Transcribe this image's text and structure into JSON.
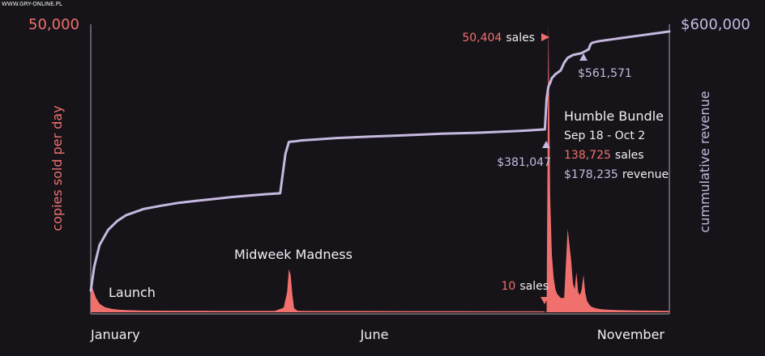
{
  "watermark": "WWW.GRY-ONLINE.PL",
  "colors": {
    "sales": "#f0706e",
    "revenue": "#c7b8e0",
    "text": "#f2eef4",
    "axis": "#7a7580",
    "background": "#161419"
  },
  "chart_data": {
    "type": "area",
    "left_axis": {
      "label": "copies sold per day",
      "max_label": "50,000",
      "ylim": [
        0,
        50000
      ]
    },
    "right_axis": {
      "label": "cummulative revenue",
      "max_label": "$600,000",
      "ylim": [
        0,
        600000
      ]
    },
    "x_ticks": [
      "January",
      "June",
      "November"
    ],
    "x_range_days": [
      0,
      330
    ],
    "series": [
      {
        "axis": "left",
        "type": "area",
        "x": [
          0,
          1,
          3,
          5,
          8,
          12,
          16,
          20,
          30,
          50,
          70,
          90,
          105,
          110,
          112,
          113,
          114,
          115,
          116,
          118,
          120,
          130,
          150,
          170,
          190,
          210,
          230,
          250,
          258,
          260,
          261,
          262,
          263,
          264,
          265,
          266,
          268,
          270,
          272,
          274,
          275,
          276,
          277,
          278,
          279,
          280,
          281,
          282,
          283,
          284,
          285,
          286,
          287,
          288,
          290,
          292,
          295,
          300,
          310,
          320,
          330
        ],
        "values": [
          5400,
          4200,
          2500,
          1500,
          900,
          600,
          450,
          380,
          300,
          260,
          250,
          240,
          240,
          800,
          3500,
          7500,
          6500,
          3000,
          700,
          260,
          240,
          230,
          220,
          210,
          200,
          190,
          180,
          170,
          170,
          10,
          50404,
          20000,
          10000,
          6000,
          4000,
          3200,
          2500,
          2500,
          14500,
          9000,
          5000,
          4000,
          7000,
          3500,
          3000,
          4000,
          6500,
          3500,
          2000,
          1500,
          1100,
          900,
          800,
          700,
          600,
          500,
          450,
          400,
          330,
          280,
          250
        ]
      },
      {
        "axis": "right",
        "type": "line",
        "x": [
          0,
          2,
          5,
          10,
          15,
          20,
          30,
          40,
          50,
          60,
          70,
          80,
          90,
          100,
          108,
          111,
          113,
          116,
          120,
          140,
          160,
          180,
          200,
          220,
          240,
          250,
          259,
          260,
          261,
          262,
          263,
          264,
          265,
          268,
          270,
          272,
          275,
          280,
          284,
          285,
          286,
          290,
          300,
          310,
          320,
          330
        ],
        "values": [
          45000,
          95000,
          140000,
          172000,
          190000,
          202000,
          215000,
          222000,
          228000,
          232000,
          236000,
          240000,
          243000,
          246000,
          248000,
          330000,
          355000,
          356000,
          358000,
          363000,
          366000,
          369000,
          372000,
          374000,
          377000,
          379000,
          381047,
          445000,
          470000,
          478000,
          488000,
          492000,
          496000,
          504000,
          520000,
          530000,
          536000,
          540000,
          548000,
          558000,
          561571,
          565000,
          570000,
          575000,
          580000,
          585000
        ]
      }
    ],
    "annotations": {
      "launch": "Launch",
      "midweek": "Midweek Madness",
      "peak_sales_value": "50,404",
      "peak_sales_unit": "sales",
      "low_sales_value": "10",
      "low_sales_unit": "sales",
      "revenue_before": "$381,047",
      "revenue_after": "$561,571",
      "humble_title": "Humble Bundle",
      "humble_dates": "Sep 18 - Oct 2",
      "humble_sales_value": "138,725",
      "humble_sales_unit": "sales",
      "humble_revenue_value": "$178,235",
      "humble_revenue_unit": "revenue"
    }
  }
}
